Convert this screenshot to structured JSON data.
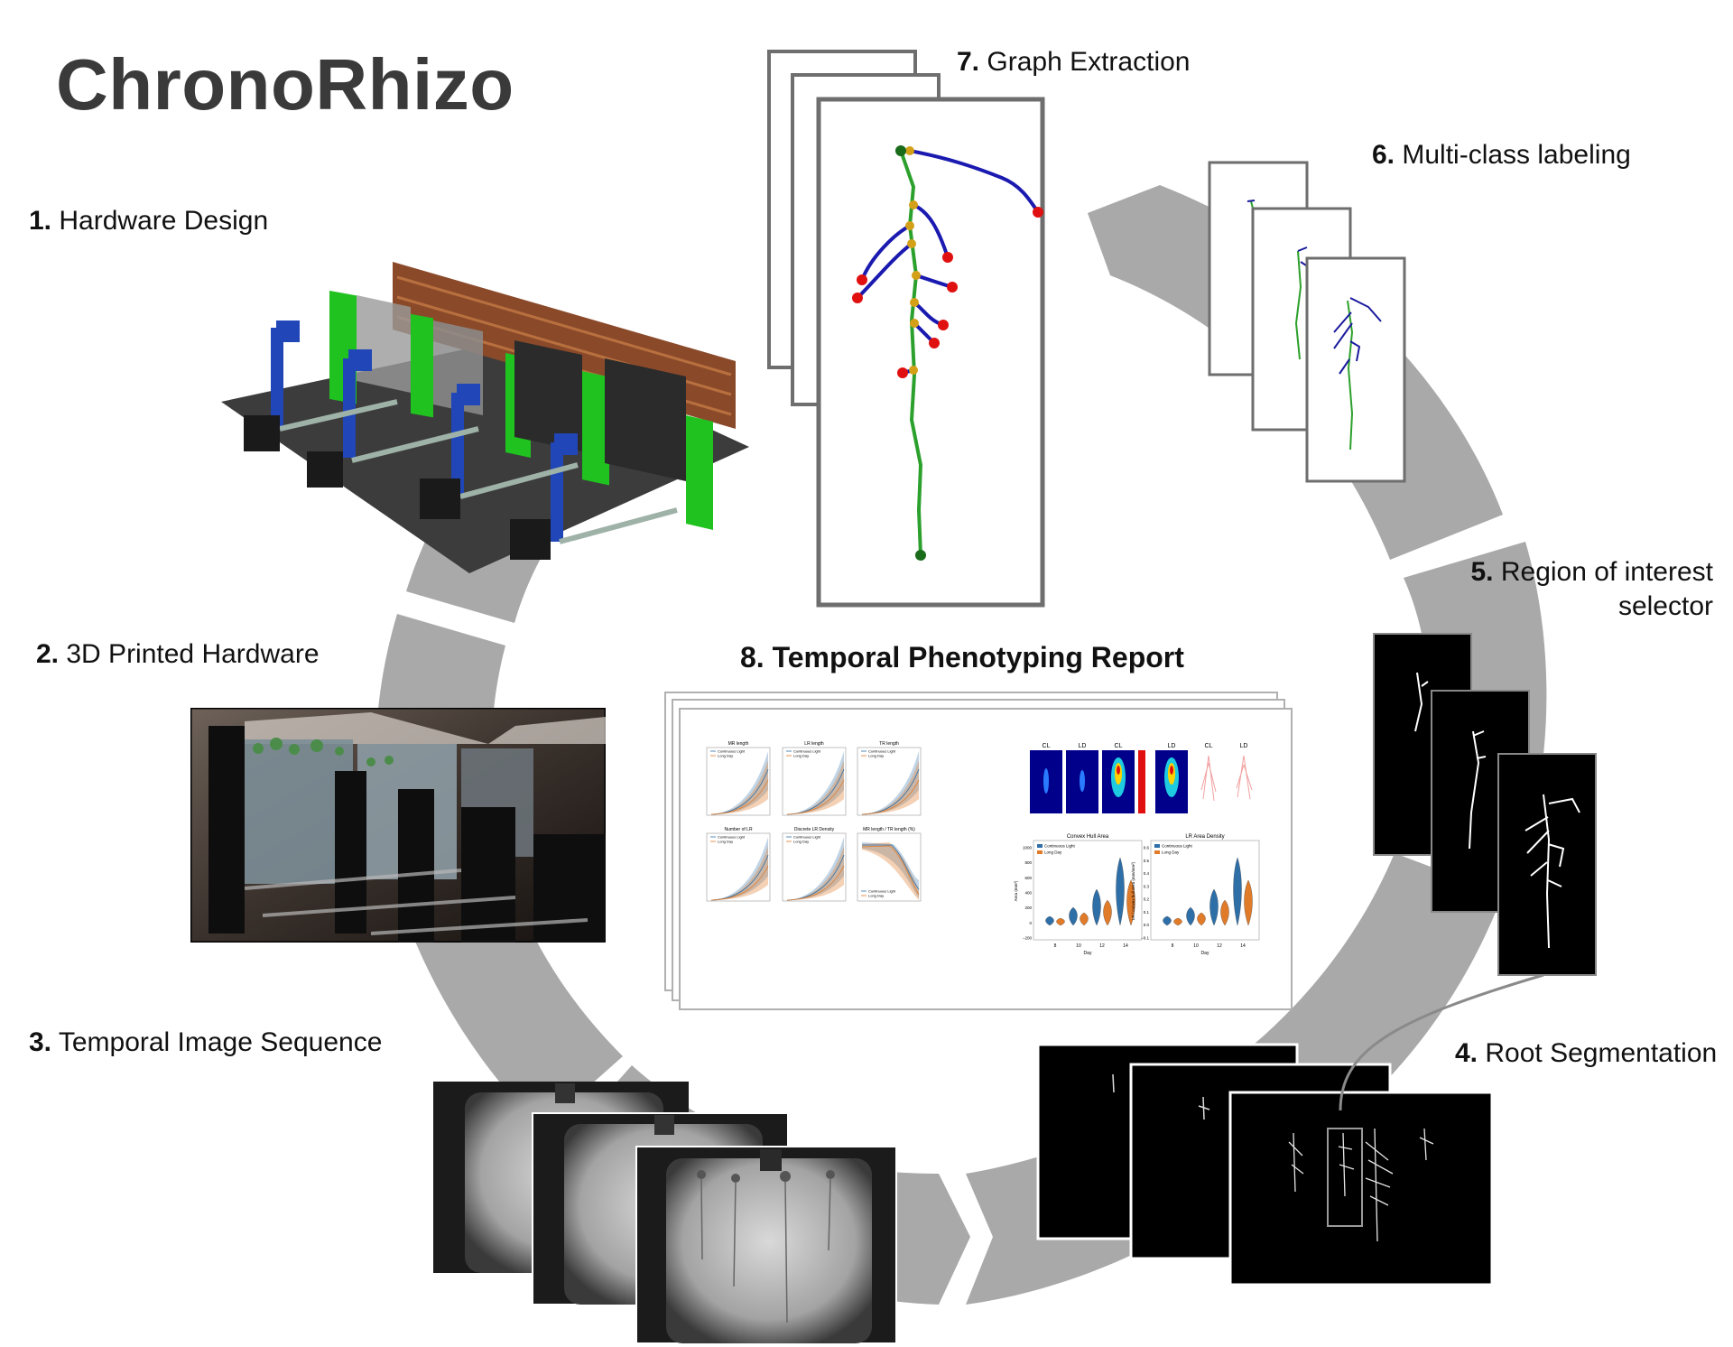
{
  "title": "ChronoRhizo",
  "steps": [
    {
      "num": "1.",
      "label": "Hardware Design"
    },
    {
      "num": "2.",
      "label": "3D Printed Hardware"
    },
    {
      "num": "3.",
      "label": "Temporal Image Sequence"
    },
    {
      "num": "4.",
      "label": "Root Segmentation"
    },
    {
      "num": "5.",
      "label": "Region of interest",
      "label2": "selector"
    },
    {
      "num": "6.",
      "label": "Multi-class labeling"
    },
    {
      "num": "7.",
      "label": "Graph Extraction"
    },
    {
      "num": "8.",
      "label": "Temporal Phenotyping Report"
    }
  ],
  "report": {
    "line_panels": [
      "MR length",
      "LR length",
      "TR length",
      "Number of LR",
      "Discrete LR Density",
      "MR length / TR length (%)"
    ],
    "heatmap_labels": [
      "CL",
      "LD",
      "CL",
      "LD",
      "CL",
      "LD"
    ],
    "violin_panels": [
      {
        "title": "Convex Hull Area",
        "xlabel": "Day",
        "ylabel": "Area (mm²)",
        "days": [
          "8",
          "10",
          "12",
          "14"
        ],
        "yticks": [
          "1000",
          "800",
          "600",
          "400",
          "200",
          "0",
          "−200"
        ]
      },
      {
        "title": "LR Area Density",
        "xlabel": "Day",
        "ylabel": "LR / convex hull area (mm/mm²)",
        "days": [
          "8",
          "10",
          "12",
          "14"
        ],
        "yticks": [
          "0.6",
          "0.5",
          "0.4",
          "0.3",
          "0.2",
          "0.1",
          "0.0",
          "−0.1"
        ]
      }
    ],
    "legend": [
      "Continuous Light",
      "Long Day"
    ],
    "colors": {
      "continuous_light": "#2e6fa8",
      "long_day": "#e07b2a"
    }
  },
  "colors": {
    "cycle_arrow": "#a9a9a9",
    "graph_edge_primary": "#2ca02c",
    "graph_edge_lateral": "#1a1ab0",
    "graph_node_tip": "#e01010",
    "graph_node_branch": "#d4a017",
    "graph_node_root": "#1a6b1a",
    "hardware_green": "#1fc21f",
    "hardware_blue": "#2046b8",
    "hardware_brown": "#8a4a2a"
  }
}
